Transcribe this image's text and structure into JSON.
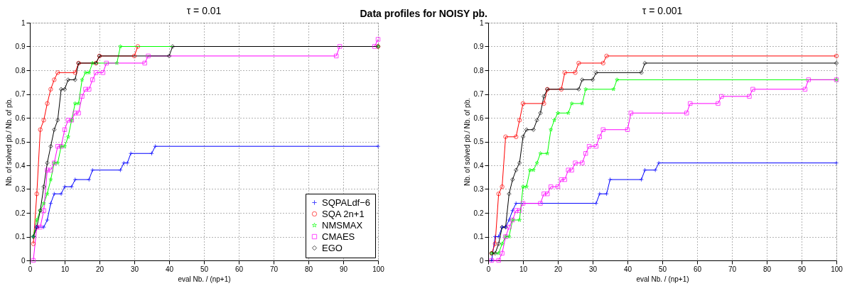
{
  "chart_data": [
    {
      "type": "line",
      "title": "τ = 0.01",
      "annotations": [
        "Data profiles for NOISY pb."
      ],
      "xlabel": "eval Nb. / (np+1)",
      "ylabel": "Nb. of solved pb./ Nb. of pb.",
      "xlim": [
        0,
        100
      ],
      "ylim": [
        0,
        1
      ],
      "xticks": [
        0,
        10,
        20,
        30,
        40,
        50,
        60,
        70,
        80,
        90,
        100
      ],
      "yticks": [
        0,
        0.1,
        0.2,
        0.3,
        0.4,
        0.5,
        0.6,
        0.7,
        0.8,
        0.9,
        1
      ],
      "grid": true,
      "legend": "bottom right",
      "line_style": "solid",
      "series": [
        {
          "name": "SQPALdf−6",
          "color": "#0000ff",
          "marker": "cross",
          "x": [
            1,
            2,
            4,
            5,
            6,
            7,
            9,
            10,
            12,
            13,
            17,
            18,
            26,
            27,
            28,
            29,
            35,
            36,
            100
          ],
          "values": [
            0.1,
            0.14,
            0.14,
            0.17,
            0.24,
            0.28,
            0.28,
            0.31,
            0.31,
            0.34,
            0.34,
            0.38,
            0.38,
            0.41,
            0.41,
            0.45,
            0.45,
            0.48,
            0.48
          ]
        },
        {
          "name": "SQA 2n+1",
          "color": "#ff0000",
          "marker": "circle",
          "x": [
            1,
            2,
            3,
            4,
            5,
            6,
            7,
            8,
            13,
            14,
            19,
            20,
            30,
            31,
            100
          ],
          "values": [
            0.07,
            0.28,
            0.55,
            0.59,
            0.66,
            0.72,
            0.76,
            0.79,
            0.79,
            0.83,
            0.83,
            0.86,
            0.86,
            0.9,
            0.9
          ]
        },
        {
          "name": "NMSMAX",
          "color": "#00ff00",
          "marker": "star",
          "x": [
            1,
            2,
            3,
            4,
            5,
            6,
            7,
            8,
            9,
            10,
            11,
            12,
            13,
            14,
            15,
            16,
            17,
            18,
            25,
            26,
            100
          ],
          "values": [
            0.1,
            0.17,
            0.21,
            0.24,
            0.28,
            0.34,
            0.41,
            0.41,
            0.48,
            0.48,
            0.52,
            0.59,
            0.66,
            0.66,
            0.76,
            0.79,
            0.79,
            0.83,
            0.83,
            0.9,
            0.9
          ]
        },
        {
          "name": "CMAES",
          "color": "#ff00ff",
          "marker": "square",
          "x": [
            1,
            2,
            3,
            4,
            5,
            6,
            7,
            8,
            9,
            10,
            11,
            12,
            13,
            14,
            15,
            16,
            17,
            18,
            19,
            21,
            22,
            33,
            34,
            88,
            89,
            99,
            100
          ],
          "values": [
            0.0,
            0.14,
            0.14,
            0.21,
            0.38,
            0.38,
            0.41,
            0.48,
            0.48,
            0.55,
            0.59,
            0.59,
            0.62,
            0.62,
            0.69,
            0.72,
            0.72,
            0.76,
            0.79,
            0.79,
            0.83,
            0.83,
            0.86,
            0.86,
            0.9,
            0.9,
            0.93
          ]
        },
        {
          "name": "EGO",
          "color": "#000000",
          "marker": "diamond",
          "x": [
            1,
            2,
            3,
            4,
            5,
            6,
            7,
            8,
            9,
            10,
            11,
            13,
            14,
            19,
            20,
            40,
            41,
            100
          ],
          "values": [
            0.1,
            0.14,
            0.21,
            0.31,
            0.41,
            0.48,
            0.55,
            0.59,
            0.72,
            0.72,
            0.76,
            0.76,
            0.83,
            0.83,
            0.86,
            0.86,
            0.9,
            0.9
          ]
        }
      ]
    },
    {
      "type": "line",
      "title": "τ = 0.001",
      "xlabel": "eval Nb. / (np+1)",
      "ylabel": "Nb. of solved pb./ Nb. of pb.",
      "xlim": [
        0,
        100
      ],
      "ylim": [
        0,
        1
      ],
      "xticks": [
        0,
        10,
        20,
        30,
        40,
        50,
        60,
        70,
        80,
        90,
        100
      ],
      "yticks": [
        0,
        0.1,
        0.2,
        0.3,
        0.4,
        0.5,
        0.6,
        0.7,
        0.8,
        0.9,
        1
      ],
      "grid": true,
      "legend": false,
      "line_style": "solid",
      "series": [
        {
          "color": "#0000ff",
          "marker": "cross",
          "x": [
            1,
            2,
            3,
            4,
            5,
            6,
            7,
            8,
            31,
            32,
            34,
            35,
            44,
            45,
            48,
            49,
            100
          ],
          "values": [
            0.0,
            0.1,
            0.1,
            0.14,
            0.14,
            0.17,
            0.21,
            0.24,
            0.24,
            0.28,
            0.28,
            0.34,
            0.34,
            0.38,
            0.38,
            0.41,
            0.41
          ]
        },
        {
          "color": "#ff0000",
          "marker": "circle",
          "x": [
            1,
            2,
            3,
            4,
            5,
            8,
            9,
            10,
            16,
            17,
            21,
            22,
            25,
            26,
            33,
            34,
            100
          ],
          "values": [
            0.03,
            0.07,
            0.28,
            0.31,
            0.52,
            0.52,
            0.59,
            0.66,
            0.66,
            0.72,
            0.72,
            0.79,
            0.79,
            0.83,
            0.83,
            0.86,
            0.86
          ]
        },
        {
          "color": "#00ff00",
          "marker": "star",
          "x": [
            1,
            3,
            4,
            5,
            6,
            7,
            9,
            10,
            11,
            12,
            13,
            14,
            15,
            17,
            18,
            19,
            20,
            23,
            24,
            27,
            28,
            36,
            37,
            100
          ],
          "values": [
            0.03,
            0.03,
            0.07,
            0.1,
            0.1,
            0.17,
            0.17,
            0.31,
            0.31,
            0.38,
            0.38,
            0.41,
            0.45,
            0.45,
            0.55,
            0.59,
            0.62,
            0.62,
            0.66,
            0.66,
            0.72,
            0.72,
            0.76,
            0.76
          ]
        },
        {
          "color": "#ff00ff",
          "marker": "square",
          "x": [
            1,
            3,
            4,
            5,
            6,
            7,
            8,
            9,
            10,
            15,
            16,
            17,
            18,
            20,
            21,
            22,
            23,
            24,
            25,
            27,
            28,
            29,
            31,
            32,
            33,
            40,
            41,
            57,
            58,
            66,
            67,
            75,
            76,
            91,
            92,
            100
          ],
          "values": [
            0,
            0,
            0.03,
            0.1,
            0.14,
            0.17,
            0.21,
            0.21,
            0.24,
            0.24,
            0.28,
            0.28,
            0.31,
            0.31,
            0.34,
            0.34,
            0.38,
            0.38,
            0.41,
            0.41,
            0.45,
            0.48,
            0.48,
            0.52,
            0.55,
            0.55,
            0.62,
            0.62,
            0.66,
            0.66,
            0.69,
            0.69,
            0.72,
            0.72,
            0.76,
            0.76
          ]
        },
        {
          "color": "#000000",
          "marker": "diamond",
          "x": [
            1,
            2,
            3,
            4,
            5,
            6,
            7,
            8,
            9,
            10,
            11,
            13,
            14,
            15,
            16,
            17,
            26,
            27,
            30,
            31,
            44,
            45,
            100
          ],
          "values": [
            0.03,
            0.03,
            0.07,
            0.14,
            0.14,
            0.28,
            0.34,
            0.38,
            0.41,
            0.52,
            0.55,
            0.55,
            0.59,
            0.62,
            0.69,
            0.72,
            0.72,
            0.76,
            0.76,
            0.79,
            0.79,
            0.83,
            0.83
          ]
        }
      ]
    }
  ]
}
